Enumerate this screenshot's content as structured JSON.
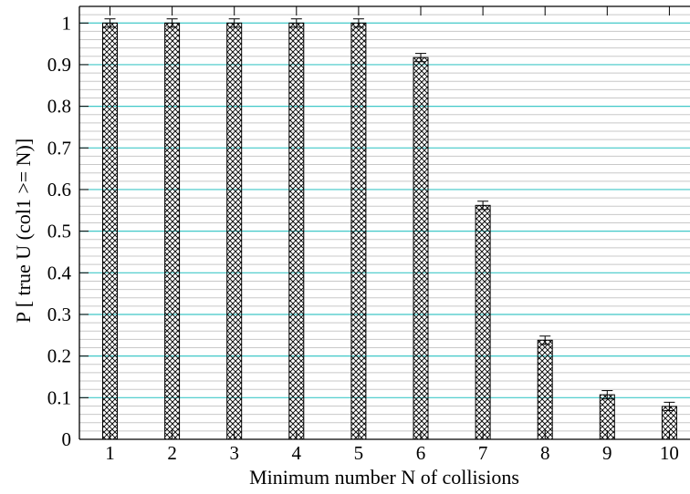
{
  "chart_data": {
    "type": "bar",
    "title": "",
    "xlabel": "Minimum number N of collisions",
    "ylabel": "P [ true U (col1 >= N)]",
    "categories": [
      "1",
      "2",
      "3",
      "4",
      "5",
      "6",
      "7",
      "8",
      "9",
      "10"
    ],
    "values": [
      1.0,
      1.0,
      1.0,
      1.0,
      1.0,
      0.917,
      0.562,
      0.238,
      0.107,
      0.079
    ],
    "error_low": [
      0.99,
      0.99,
      0.99,
      0.99,
      0.99,
      0.907,
      0.552,
      0.228,
      0.097,
      0.069
    ],
    "error_high": [
      1.01,
      1.01,
      1.01,
      1.01,
      1.01,
      0.927,
      0.572,
      0.248,
      0.117,
      0.089
    ],
    "ylim": [
      0,
      1.04
    ],
    "yticks": [
      "0",
      "0.1",
      "0.2",
      "0.3",
      "0.4",
      "0.5",
      "0.6",
      "0.7",
      "0.8",
      "0.9",
      "1"
    ],
    "grid": true,
    "bar_pattern": "crosshatch",
    "colors": {
      "major_grid": "#40c8c8",
      "minor_grid": "#c8c8c8",
      "bar_edge": "#000000",
      "background": "#ffffff"
    }
  }
}
